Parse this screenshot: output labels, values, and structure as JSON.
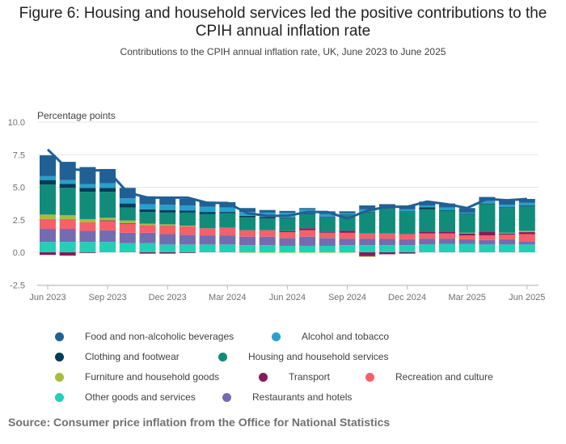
{
  "title": "Figure 6: Housing and household services led the positive contributions to the CPIH annual inflation rate",
  "subtitle": "Contributions to the CPIH annual inflation rate, UK, June 2023 to June 2025",
  "source": "Source: Consumer price inflation from the Office for National Statistics",
  "chart_data": {
    "type": "bar",
    "stacked": true,
    "ylabel": "Percentage points",
    "ylim": [
      -2.5,
      10
    ],
    "yticks": [
      "-2.5",
      "0.0",
      "2.5",
      "5.0",
      "7.5",
      "10.0"
    ],
    "ytick_values": [
      -2.5,
      0,
      2.5,
      5,
      7.5,
      10
    ],
    "categories": [
      "Jun 2023",
      "Jul 2023",
      "Aug 2023",
      "Sep 2023",
      "Oct 2023",
      "Nov 2023",
      "Dec 2023",
      "Jan 2024",
      "Feb 2024",
      "Mar 2024",
      "Apr 2024",
      "May 2024",
      "Jun 2024",
      "Jul 2024",
      "Aug 2024",
      "Sep 2024",
      "Oct 2024",
      "Nov 2024",
      "Dec 2024",
      "Jan 2025",
      "Feb 2025",
      "Mar 2025",
      "Apr 2025",
      "May 2025",
      "Jun 2025"
    ],
    "xtick_labels": [
      "Jun 2023",
      "Sep 2023",
      "Dec 2023",
      "Mar 2024",
      "Jun 2024",
      "Sep 2024",
      "Dec 2024",
      "Mar 2025",
      "Jun 2025"
    ],
    "xtick_index": [
      0,
      3,
      6,
      9,
      12,
      15,
      18,
      21,
      24
    ],
    "series": [
      {
        "name": "Other goods and services",
        "color": "#22d0b6",
        "values": [
          0.8,
          0.8,
          0.8,
          0.8,
          0.7,
          0.7,
          0.6,
          0.6,
          0.6,
          0.6,
          0.55,
          0.55,
          0.5,
          0.5,
          0.5,
          0.55,
          0.55,
          0.55,
          0.55,
          0.6,
          0.65,
          0.65,
          0.6,
          0.6,
          0.6
        ]
      },
      {
        "name": "Restaurants and hotels",
        "color": "#746cb1",
        "values": [
          1.0,
          1.0,
          0.85,
          0.9,
          0.8,
          0.8,
          0.8,
          0.75,
          0.7,
          0.7,
          0.65,
          0.65,
          0.6,
          0.7,
          0.6,
          0.5,
          0.5,
          0.5,
          0.45,
          0.45,
          0.4,
          0.35,
          0.35,
          0.4,
          0.25
        ]
      },
      {
        "name": "Recreation and culture",
        "color": "#f66068",
        "values": [
          0.75,
          0.75,
          0.65,
          0.7,
          0.7,
          0.6,
          0.65,
          0.65,
          0.55,
          0.6,
          0.5,
          0.5,
          0.45,
          0.5,
          0.4,
          0.45,
          0.4,
          0.4,
          0.4,
          0.4,
          0.4,
          0.3,
          0.35,
          0.35,
          0.55
        ]
      },
      {
        "name": "Transport",
        "color": "#871a5b",
        "values": [
          -0.2,
          -0.25,
          -0.05,
          0.05,
          0.05,
          -0.1,
          -0.1,
          -0.05,
          0,
          0,
          0,
          0,
          0.08,
          0.15,
          0.05,
          0.15,
          -0.3,
          -0.15,
          -0.1,
          0.15,
          0.15,
          0.15,
          0.3,
          0.1,
          0.15
        ]
      },
      {
        "name": "Furniture and household goods",
        "color": "#a8bd3a",
        "values": [
          0.35,
          0.3,
          0.25,
          0.2,
          0.2,
          0.1,
          0.1,
          0.05,
          0,
          0,
          -0.02,
          -0.02,
          -0.02,
          -0.02,
          -0.02,
          -0.02,
          -0.05,
          0,
          0,
          0,
          0,
          0.05,
          0,
          0.05,
          0.1
        ]
      },
      {
        "name": "Housing and household services",
        "color": "#118c7b",
        "values": [
          2.3,
          2.1,
          2.1,
          2.0,
          1.0,
          0.9,
          0.9,
          1.0,
          1.1,
          1.1,
          1.0,
          0.9,
          1.0,
          1.1,
          1.1,
          1.2,
          1.6,
          1.9,
          1.7,
          1.7,
          1.6,
          1.4,
          2.1,
          1.9,
          1.9
        ]
      },
      {
        "name": "Clothing and footwear",
        "color": "#003c57",
        "values": [
          0.35,
          0.3,
          0.3,
          0.3,
          0.3,
          0.2,
          0.2,
          0.15,
          0.15,
          0.1,
          0.1,
          0.1,
          0.05,
          0.05,
          0.05,
          0.05,
          0.05,
          0.05,
          0.05,
          0.15,
          0.05,
          0.05,
          0.05,
          0.05,
          0.05
        ]
      },
      {
        "name": "Alcohol and tobacco",
        "color": "#27a0cc",
        "values": [
          0.3,
          0.3,
          0.3,
          0.35,
          0.4,
          0.4,
          0.4,
          0.4,
          0.4,
          0.35,
          0.3,
          0.35,
          0.35,
          0.3,
          0.25,
          0.1,
          0.2,
          0.1,
          0.15,
          0.15,
          0.2,
          0.1,
          0.2,
          0.2,
          0.2
        ]
      },
      {
        "name": "Food and non-alcoholic beverages",
        "color": "#206095",
        "values": [
          1.6,
          1.4,
          1.3,
          1.1,
          0.8,
          0.6,
          0.5,
          0.5,
          0.4,
          0.4,
          0.3,
          0.2,
          0.15,
          0.1,
          0.2,
          0.15,
          0.3,
          0.2,
          0.3,
          0.3,
          0.3,
          0.35,
          0.3,
          0.4,
          0.3
        ]
      }
    ],
    "line": {
      "name": "CPIH",
      "color": "#206095",
      "values": [
        7.9,
        6.4,
        6.3,
        6.3,
        4.6,
        4.2,
        4.2,
        4.2,
        3.8,
        3.8,
        3.0,
        2.8,
        2.8,
        3.1,
        3.1,
        2.6,
        3.2,
        3.5,
        3.5,
        3.9,
        3.7,
        3.4,
        4.1,
        4.0,
        4.1
      ]
    },
    "legend_order": [
      8,
      7,
      6,
      5,
      4,
      3,
      2,
      0,
      1
    ]
  }
}
